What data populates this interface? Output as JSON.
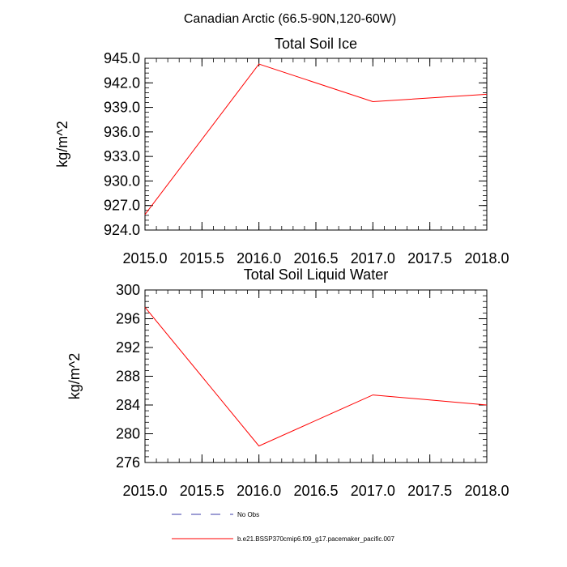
{
  "figure_title": "Canadian Arctic (66.5-90N,120-60W)",
  "colors": {
    "model": "#ff0000",
    "obs": "#3c3caa",
    "axis": "#000000"
  },
  "legend": {
    "entries": [
      {
        "label": "No Obs",
        "style": "dashed",
        "color": "#3c3caa"
      },
      {
        "label": "b.e21.BSSP370cmip6.f09_g17.pacemaker_pacific.007",
        "style": "solid",
        "color": "#ff0000"
      }
    ]
  },
  "chart_data": [
    {
      "type": "line",
      "title": "Total Soil Ice",
      "ylabel": "kg/m^2",
      "xlabel": "",
      "xlim": [
        2015.0,
        2018.0
      ],
      "ylim": [
        924.0,
        945.0
      ],
      "xticks": [
        2015.0,
        2015.5,
        2016.0,
        2016.5,
        2017.0,
        2017.5,
        2018.0
      ],
      "xtick_labels": [
        "2015.0",
        "2015.5",
        "2016.0",
        "2016.5",
        "2017.0",
        "2017.5",
        "2018.0"
      ],
      "yticks": [
        924.0,
        927.0,
        930.0,
        933.0,
        936.0,
        939.0,
        942.0,
        945.0
      ],
      "ytick_labels": [
        "924.0",
        "927.0",
        "930.0",
        "933.0",
        "936.0",
        "939.0",
        "942.0",
        "945.0"
      ],
      "series": [
        {
          "x": [
            2015.0,
            2016.0,
            2017.0,
            2018.0
          ],
          "values": [
            925.9,
            944.3,
            939.7,
            940.6
          ]
        }
      ]
    },
    {
      "type": "line",
      "title": "Total Soil Liquid Water",
      "ylabel": "kg/m^2",
      "xlabel": "",
      "xlim": [
        2015.0,
        2018.0
      ],
      "ylim": [
        276,
        300
      ],
      "xticks": [
        2015.0,
        2015.5,
        2016.0,
        2016.5,
        2017.0,
        2017.5,
        2018.0
      ],
      "xtick_labels": [
        "2015.0",
        "2015.5",
        "2016.0",
        "2016.5",
        "2017.0",
        "2017.5",
        "2018.0"
      ],
      "yticks": [
        276,
        280,
        284,
        288,
        292,
        296,
        300
      ],
      "ytick_labels": [
        "276",
        "280",
        "284",
        "288",
        "292",
        "296",
        "300"
      ],
      "series": [
        {
          "x": [
            2015.0,
            2016.0,
            2017.0,
            2018.0
          ],
          "values": [
            297.6,
            278.3,
            285.4,
            284.0
          ]
        }
      ]
    }
  ]
}
